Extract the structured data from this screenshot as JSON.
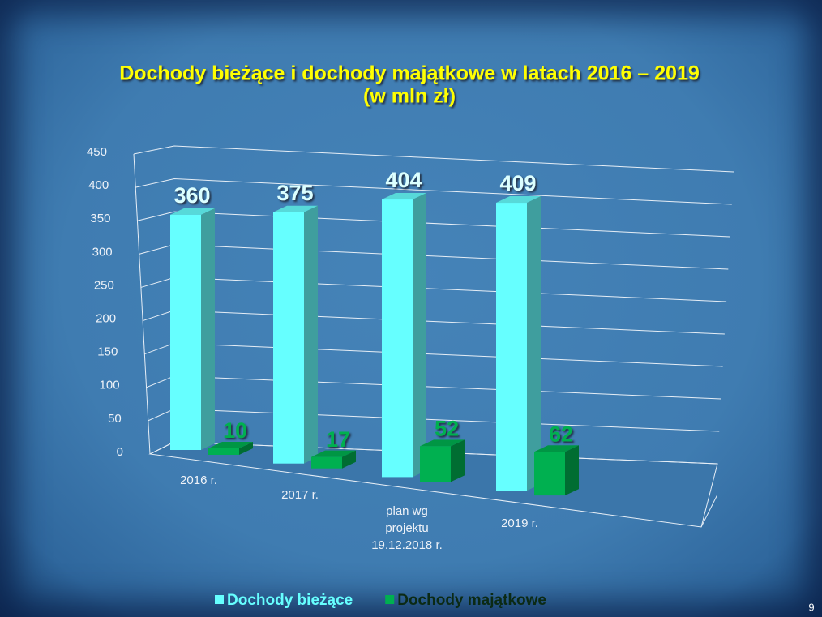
{
  "chart_data": {
    "type": "bar3d",
    "title": "Dochody bieżące i dochody majątkowe w latach 2016 – 2019",
    "subtitle": "(w mln zł)",
    "categories": [
      "2016 r.",
      "2017 r.",
      "plan wg projektu 19.12.2018 r.",
      "2019 r."
    ],
    "series": [
      {
        "name": "Dochody bieżące",
        "color": "#66ffff",
        "values": [
          360,
          375,
          404,
          409
        ]
      },
      {
        "name": "Dochody majątkowe",
        "color": "#00b050",
        "values": [
          10,
          17,
          52,
          62
        ]
      }
    ],
    "ylim": [
      0,
      450
    ],
    "yticks": [
      0,
      50,
      100,
      150,
      200,
      250,
      300,
      350,
      400,
      450
    ],
    "grid": true,
    "legend": "bottom"
  },
  "slide_number": "9"
}
